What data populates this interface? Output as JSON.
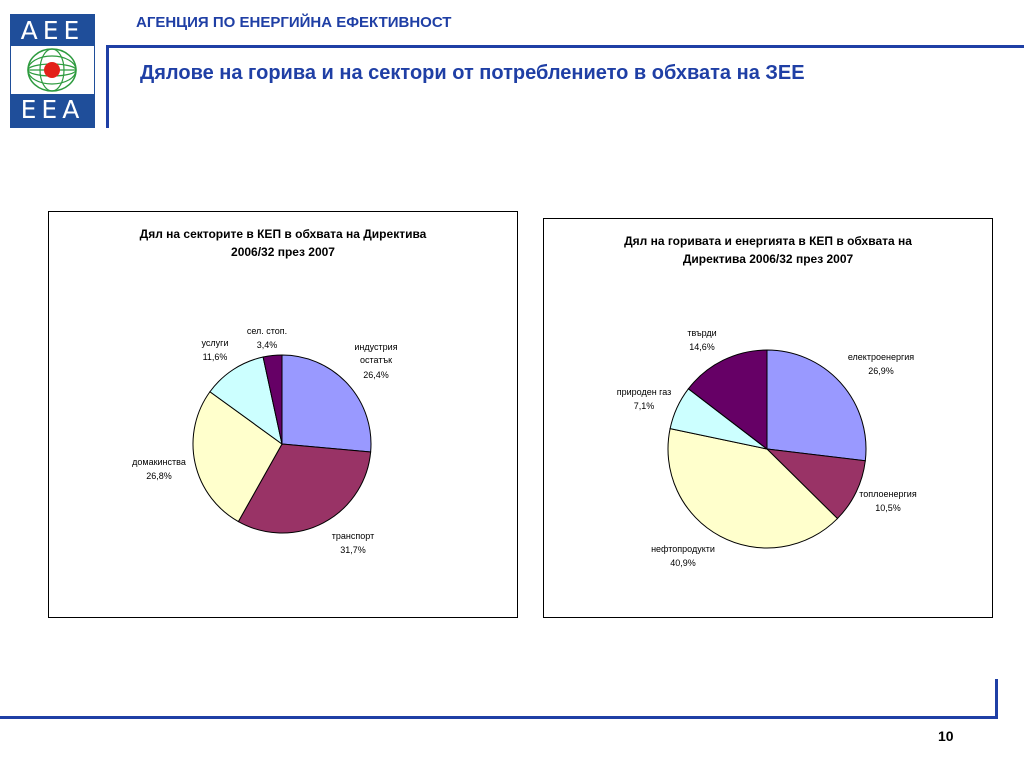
{
  "header": {
    "logo_top": "AEE",
    "logo_bottom": "EEA",
    "agency_name": "АГЕНЦИЯ ПО ЕНЕРГИЙНА ЕФЕКТИВНОСТ",
    "page_title": "Дялове на горива и на сектори от потреблението в обхвата на ЗЕЕ"
  },
  "colors": {
    "brand_blue": "#1f3fa5",
    "logo_blue": "#1f4e9a",
    "logo_red": "#e32119",
    "logo_green": "#2e9b3f"
  },
  "chart_data": [
    {
      "type": "pie",
      "title_lines": [
        "Дял на секторите в КЕП в обхвата на Директива",
        "2006/32 през 2007"
      ],
      "slices": [
        {
          "label_lines": [
            "индустрия",
            "остатък"
          ],
          "percent_label": "26,4%",
          "value": 26.4,
          "color": "#9999ff"
        },
        {
          "label_lines": [
            "транспорт"
          ],
          "percent_label": "31,7%",
          "value": 31.7,
          "color": "#993366"
        },
        {
          "label_lines": [
            "домакинства"
          ],
          "percent_label": "26,8%",
          "value": 26.8,
          "color": "#ffffcc"
        },
        {
          "label_lines": [
            "услуги"
          ],
          "percent_label": "11,6%",
          "value": 11.6,
          "color": "#ccffff"
        },
        {
          "label_lines": [
            "сел. стоп."
          ],
          "percent_label": "3,4%",
          "value": 3.4,
          "color": "#660066"
        }
      ]
    },
    {
      "type": "pie",
      "title_lines": [
        "Дял на горивата и енергията в КЕП в обхвата на",
        "Директива 2006/32 през 2007"
      ],
      "slices": [
        {
          "label_lines": [
            "електроенергия"
          ],
          "percent_label": "26,9%",
          "value": 26.9,
          "color": "#9999ff"
        },
        {
          "label_lines": [
            "топлоенергия"
          ],
          "percent_label": "10,5%",
          "value": 10.5,
          "color": "#993366"
        },
        {
          "label_lines": [
            "нефтопродукти"
          ],
          "percent_label": "40,9%",
          "value": 40.9,
          "color": "#ffffcc"
        },
        {
          "label_lines": [
            "природен газ"
          ],
          "percent_label": "7,1%",
          "value": 7.1,
          "color": "#ccffff"
        },
        {
          "label_lines": [
            "твърди"
          ],
          "percent_label": "14,6%",
          "value": 14.6,
          "color": "#660066"
        }
      ]
    }
  ],
  "footer": {
    "page_number": "10"
  }
}
